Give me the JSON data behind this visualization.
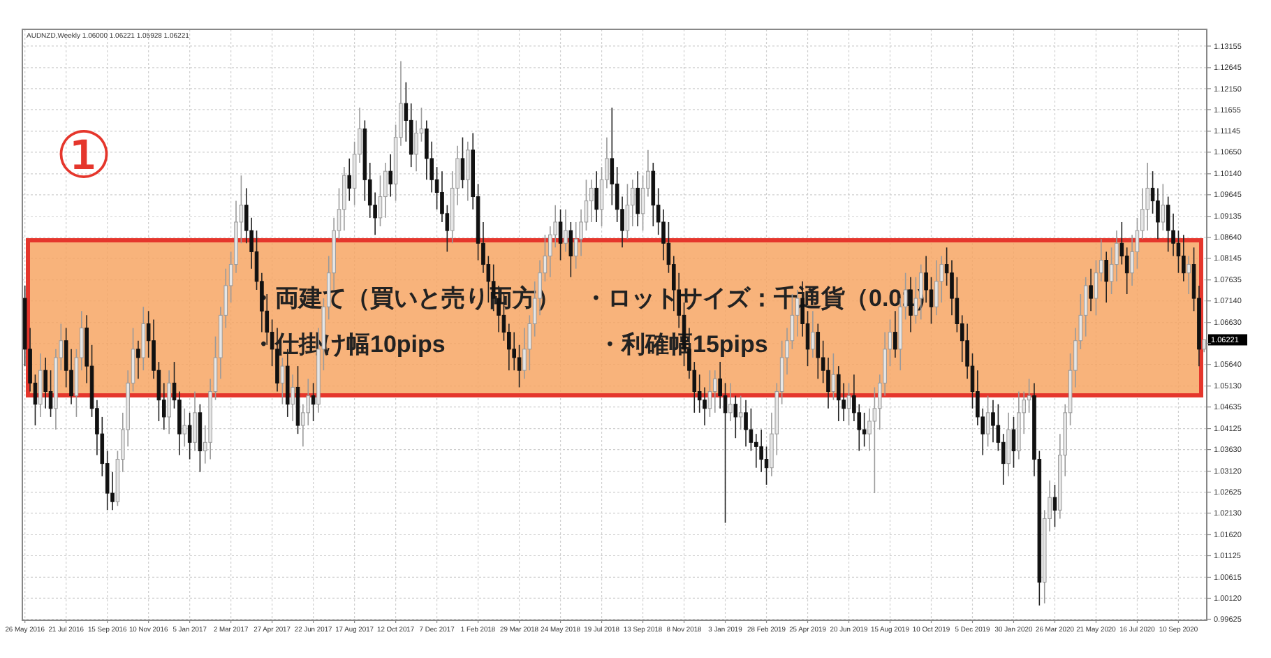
{
  "chart_data": {
    "type": "candlestick",
    "title": "AUDNZD,Weekly  1.06000 1.06221 1.05928 1.06221",
    "annotations": [
      "①",
      "・両建て（買いと売り両方）",
      "・ロットサイズ：千通貨（0.01）",
      "・仕掛け幅10pips",
      "・利確幅15pips",
      "1.06221"
    ],
    "grid": true,
    "ylim": [
      0.996,
      1.1355
    ],
    "yticks": [
      {
        "value": 1.13155,
        "label": "1.13155"
      },
      {
        "value": 1.12645,
        "label": "1.12645"
      },
      {
        "value": 1.1215,
        "label": "1.12150"
      },
      {
        "value": 1.11655,
        "label": "1.11655"
      },
      {
        "value": 1.11145,
        "label": "1.11145"
      },
      {
        "value": 1.1065,
        "label": "1.10650"
      },
      {
        "value": 1.1014,
        "label": "1.10140"
      },
      {
        "value": 1.09645,
        "label": "1.09645"
      },
      {
        "value": 1.09135,
        "label": "1.09135"
      },
      {
        "value": 1.0864,
        "label": "1.08640"
      },
      {
        "value": 1.08145,
        "label": "1.08145"
      },
      {
        "value": 1.07635,
        "label": "1.07635"
      },
      {
        "value": 1.0714,
        "label": "1.07140"
      },
      {
        "value": 1.0663,
        "label": "1.06630"
      },
      {
        "value": 1.06135,
        "label": null
      },
      {
        "value": 1.0564,
        "label": "1.05640"
      },
      {
        "value": 1.0513,
        "label": "1.05130"
      },
      {
        "value": 1.04635,
        "label": "1.04635"
      },
      {
        "value": 1.04125,
        "label": "1.04125"
      },
      {
        "value": 1.0363,
        "label": "1.03630"
      },
      {
        "value": 1.0312,
        "label": "1.03120"
      },
      {
        "value": 1.02625,
        "label": "1.02625"
      },
      {
        "value": 1.0213,
        "label": "1.02130"
      },
      {
        "value": 1.0162,
        "label": "1.01620"
      },
      {
        "value": 1.01125,
        "label": "1.01125"
      },
      {
        "value": 1.00615,
        "label": "1.00615"
      },
      {
        "value": 1.0012,
        "label": "1.00120"
      },
      {
        "value": 0.99625,
        "label": "0.99625"
      }
    ],
    "categories": [
      "26 May 2016",
      null,
      null,
      null,
      null,
      null,
      null,
      null,
      "21 Jul 2016",
      null,
      null,
      null,
      null,
      null,
      null,
      null,
      "15 Sep 2016",
      null,
      null,
      null,
      null,
      null,
      null,
      null,
      "10 Nov 2016",
      null,
      null,
      null,
      null,
      null,
      null,
      null,
      "5 Jan 2017",
      null,
      null,
      null,
      null,
      null,
      null,
      null,
      "2 Mar 2017",
      null,
      null,
      null,
      null,
      null,
      null,
      null,
      "27 Apr 2017",
      null,
      null,
      null,
      null,
      null,
      null,
      null,
      "22 Jun 2017",
      null,
      null,
      null,
      null,
      null,
      null,
      null,
      "17 Aug 2017",
      null,
      null,
      null,
      null,
      null,
      null,
      null,
      "12 Oct 2017",
      null,
      null,
      null,
      null,
      null,
      null,
      null,
      "7 Dec 2017",
      null,
      null,
      null,
      null,
      null,
      null,
      null,
      "1 Feb 2018",
      null,
      null,
      null,
      null,
      null,
      null,
      null,
      "29 Mar 2018",
      null,
      null,
      null,
      null,
      null,
      null,
      null,
      "24 May 2018",
      null,
      null,
      null,
      null,
      null,
      null,
      null,
      "19 Jul 2018",
      null,
      null,
      null,
      null,
      null,
      null,
      null,
      "13 Sep 2018",
      null,
      null,
      null,
      null,
      null,
      null,
      null,
      "8 Nov 2018",
      null,
      null,
      null,
      null,
      null,
      null,
      null,
      "3 Jan 2019",
      null,
      null,
      null,
      null,
      null,
      null,
      null,
      "28 Feb 2019",
      null,
      null,
      null,
      null,
      null,
      null,
      null,
      "25 Apr 2019",
      null,
      null,
      null,
      null,
      null,
      null,
      null,
      "20 Jun 2019",
      null,
      null,
      null,
      null,
      null,
      null,
      null,
      "15 Aug 2019",
      null,
      null,
      null,
      null,
      null,
      null,
      null,
      "10 Oct 2019",
      null,
      null,
      null,
      null,
      null,
      null,
      null,
      "5 Dec 2019",
      null,
      null,
      null,
      null,
      null,
      null,
      null,
      "30 Jan 2020",
      null,
      null,
      null,
      null,
      null,
      null,
      null,
      "26 Mar 2020",
      null,
      null,
      null,
      null,
      null,
      null,
      null,
      "21 May 2020",
      null,
      null,
      null,
      null,
      null,
      null,
      null,
      "16 Jul 2020",
      null,
      null,
      null,
      null,
      null,
      null,
      null,
      "10 Sep 2020",
      null,
      null,
      null,
      null,
      null
    ],
    "ohlc": [
      [
        1.072,
        1.075,
        1.056,
        1.06
      ],
      [
        1.06,
        1.065,
        1.05,
        1.052
      ],
      [
        1.052,
        1.054,
        1.042,
        1.047
      ],
      [
        1.047,
        1.059,
        1.044,
        1.055
      ],
      [
        1.055,
        1.058,
        1.046,
        1.05
      ],
      [
        1.05,
        1.055,
        1.044,
        1.046
      ],
      [
        1.046,
        1.06,
        1.041,
        1.058
      ],
      [
        1.058,
        1.066,
        1.055,
        1.062
      ],
      [
        1.062,
        1.065,
        1.051,
        1.055
      ],
      [
        1.055,
        1.06,
        1.047,
        1.049
      ],
      [
        1.049,
        1.06,
        1.044,
        1.058
      ],
      [
        1.058,
        1.069,
        1.055,
        1.065
      ],
      [
        1.065,
        1.068,
        1.052,
        1.056
      ],
      [
        1.056,
        1.061,
        1.044,
        1.046
      ],
      [
        1.046,
        1.048,
        1.035,
        1.04
      ],
      [
        1.04,
        1.044,
        1.03,
        1.033
      ],
      [
        1.033,
        1.036,
        1.022,
        1.026
      ],
      [
        1.026,
        1.031,
        1.022,
        1.024
      ],
      [
        1.024,
        1.036,
        1.023,
        1.034
      ],
      [
        1.034,
        1.045,
        1.031,
        1.041
      ],
      [
        1.041,
        1.055,
        1.037,
        1.052
      ],
      [
        1.052,
        1.065,
        1.05,
        1.06
      ],
      [
        1.06,
        1.062,
        1.053,
        1.058
      ],
      [
        1.058,
        1.07,
        1.055,
        1.066
      ],
      [
        1.066,
        1.069,
        1.058,
        1.062
      ],
      [
        1.062,
        1.067,
        1.053,
        1.055
      ],
      [
        1.055,
        1.057,
        1.043,
        1.048
      ],
      [
        1.048,
        1.052,
        1.041,
        1.044
      ],
      [
        1.044,
        1.055,
        1.04,
        1.052
      ],
      [
        1.052,
        1.057,
        1.046,
        1.048
      ],
      [
        1.048,
        1.05,
        1.035,
        1.04
      ],
      [
        1.04,
        1.046,
        1.037,
        1.042
      ],
      [
        1.042,
        1.045,
        1.034,
        1.038
      ],
      [
        1.038,
        1.05,
        1.036,
        1.045
      ],
      [
        1.045,
        1.047,
        1.031,
        1.036
      ],
      [
        1.036,
        1.042,
        1.033,
        1.038
      ],
      [
        1.038,
        1.053,
        1.034,
        1.05
      ],
      [
        1.05,
        1.063,
        1.048,
        1.058
      ],
      [
        1.058,
        1.07,
        1.053,
        1.068
      ],
      [
        1.068,
        1.079,
        1.065,
        1.075
      ],
      [
        1.075,
        1.083,
        1.071,
        1.08
      ],
      [
        1.08,
        1.095,
        1.078,
        1.09
      ],
      [
        1.09,
        1.101,
        1.085,
        1.094
      ],
      [
        1.094,
        1.098,
        1.085,
        1.088
      ],
      [
        1.088,
        1.091,
        1.079,
        1.083
      ],
      [
        1.083,
        1.088,
        1.074,
        1.076
      ],
      [
        1.076,
        1.078,
        1.064,
        1.069
      ],
      [
        1.069,
        1.073,
        1.061,
        1.064
      ],
      [
        1.064,
        1.067,
        1.056,
        1.06
      ],
      [
        1.06,
        1.065,
        1.05,
        1.052
      ],
      [
        1.052,
        1.058,
        1.047,
        1.056
      ],
      [
        1.056,
        1.06,
        1.044,
        1.047
      ],
      [
        1.047,
        1.054,
        1.043,
        1.051
      ],
      [
        1.051,
        1.056,
        1.04,
        1.042
      ],
      [
        1.042,
        1.047,
        1.037,
        1.045
      ],
      [
        1.045,
        1.053,
        1.042,
        1.049
      ],
      [
        1.049,
        1.052,
        1.043,
        1.047
      ],
      [
        1.047,
        1.065,
        1.045,
        1.06
      ],
      [
        1.06,
        1.072,
        1.055,
        1.07
      ],
      [
        1.07,
        1.082,
        1.067,
        1.078
      ],
      [
        1.078,
        1.091,
        1.074,
        1.088
      ],
      [
        1.088,
        1.098,
        1.086,
        1.093
      ],
      [
        1.093,
        1.103,
        1.088,
        1.101
      ],
      [
        1.101,
        1.105,
        1.095,
        1.098
      ],
      [
        1.098,
        1.109,
        1.094,
        1.106
      ],
      [
        1.106,
        1.117,
        1.104,
        1.112
      ],
      [
        1.112,
        1.114,
        1.095,
        1.1
      ],
      [
        1.1,
        1.104,
        1.091,
        1.094
      ],
      [
        1.094,
        1.097,
        1.087,
        1.091
      ],
      [
        1.091,
        1.101,
        1.089,
        1.096
      ],
      [
        1.096,
        1.104,
        1.091,
        1.102
      ],
      [
        1.102,
        1.106,
        1.096,
        1.099
      ],
      [
        1.099,
        1.113,
        1.095,
        1.11
      ],
      [
        1.11,
        1.128,
        1.108,
        1.118
      ],
      [
        1.118,
        1.123,
        1.109,
        1.114
      ],
      [
        1.114,
        1.118,
        1.103,
        1.106
      ],
      [
        1.106,
        1.114,
        1.102,
        1.111
      ],
      [
        1.111,
        1.117,
        1.109,
        1.112
      ],
      [
        1.112,
        1.114,
        1.1,
        1.105
      ],
      [
        1.105,
        1.109,
        1.097,
        1.1
      ],
      [
        1.1,
        1.103,
        1.093,
        1.097
      ],
      [
        1.097,
        1.102,
        1.09,
        1.092
      ],
      [
        1.092,
        1.094,
        1.083,
        1.088
      ],
      [
        1.088,
        1.102,
        1.085,
        1.098
      ],
      [
        1.098,
        1.108,
        1.094,
        1.105
      ],
      [
        1.105,
        1.11,
        1.098,
        1.1
      ],
      [
        1.1,
        1.109,
        1.095,
        1.107
      ],
      [
        1.107,
        1.111,
        1.093,
        1.096
      ],
      [
        1.096,
        1.099,
        1.081,
        1.085
      ],
      [
        1.085,
        1.09,
        1.078,
        1.08
      ],
      [
        1.08,
        1.082,
        1.071,
        1.076
      ],
      [
        1.076,
        1.08,
        1.069,
        1.072
      ],
      [
        1.072,
        1.075,
        1.064,
        1.068
      ],
      [
        1.068,
        1.073,
        1.062,
        1.064
      ],
      [
        1.064,
        1.066,
        1.055,
        1.06
      ],
      [
        1.06,
        1.064,
        1.055,
        1.058
      ],
      [
        1.058,
        1.061,
        1.051,
        1.055
      ],
      [
        1.055,
        1.065,
        1.053,
        1.06
      ],
      [
        1.06,
        1.068,
        1.055,
        1.066
      ],
      [
        1.066,
        1.076,
        1.063,
        1.072
      ],
      [
        1.072,
        1.081,
        1.068,
        1.078
      ],
      [
        1.078,
        1.087,
        1.076,
        1.082
      ],
      [
        1.082,
        1.089,
        1.077,
        1.087
      ],
      [
        1.087,
        1.094,
        1.084,
        1.09
      ],
      [
        1.09,
        1.093,
        1.081,
        1.085
      ],
      [
        1.085,
        1.093,
        1.083,
        1.088
      ],
      [
        1.088,
        1.09,
        1.077,
        1.082
      ],
      [
        1.082,
        1.09,
        1.079,
        1.086
      ],
      [
        1.086,
        1.093,
        1.082,
        1.09
      ],
      [
        1.09,
        1.1,
        1.088,
        1.095
      ],
      [
        1.095,
        1.1,
        1.09,
        1.098
      ],
      [
        1.098,
        1.102,
        1.09,
        1.093
      ],
      [
        1.093,
        1.103,
        1.089,
        1.1
      ],
      [
        1.1,
        1.11,
        1.098,
        1.105
      ],
      [
        1.105,
        1.117,
        1.094,
        1.099
      ],
      [
        1.099,
        1.103,
        1.09,
        1.093
      ],
      [
        1.093,
        1.096,
        1.084,
        1.088
      ],
      [
        1.088,
        1.099,
        1.086,
        1.094
      ],
      [
        1.094,
        1.1,
        1.089,
        1.098
      ],
      [
        1.098,
        1.102,
        1.089,
        1.092
      ],
      [
        1.092,
        1.101,
        1.088,
        1.098
      ],
      [
        1.098,
        1.107,
        1.096,
        1.102
      ],
      [
        1.102,
        1.104,
        1.089,
        1.094
      ],
      [
        1.094,
        1.098,
        1.087,
        1.09
      ],
      [
        1.09,
        1.093,
        1.081,
        1.085
      ],
      [
        1.085,
        1.09,
        1.078,
        1.08
      ],
      [
        1.08,
        1.082,
        1.069,
        1.074
      ],
      [
        1.074,
        1.078,
        1.065,
        1.068
      ],
      [
        1.068,
        1.071,
        1.056,
        1.06
      ],
      [
        1.06,
        1.065,
        1.053,
        1.055
      ],
      [
        1.055,
        1.057,
        1.045,
        1.05
      ],
      [
        1.05,
        1.054,
        1.045,
        1.048
      ],
      [
        1.048,
        1.051,
        1.042,
        1.046
      ],
      [
        1.046,
        1.055,
        1.044,
        1.05
      ],
      [
        1.05,
        1.055,
        1.045,
        1.053
      ],
      [
        1.053,
        1.057,
        1.046,
        1.049
      ],
      [
        1.049,
        1.052,
        1.019,
        1.045
      ],
      [
        1.045,
        1.052,
        1.043,
        1.047
      ],
      [
        1.047,
        1.049,
        1.039,
        1.044
      ],
      [
        1.044,
        1.049,
        1.041,
        1.045
      ],
      [
        1.045,
        1.048,
        1.037,
        1.041
      ],
      [
        1.041,
        1.046,
        1.036,
        1.038
      ],
      [
        1.038,
        1.04,
        1.032,
        1.037
      ],
      [
        1.037,
        1.041,
        1.031,
        1.034
      ],
      [
        1.034,
        1.037,
        1.028,
        1.032
      ],
      [
        1.032,
        1.045,
        1.03,
        1.04
      ],
      [
        1.04,
        1.052,
        1.035,
        1.05
      ],
      [
        1.05,
        1.062,
        1.047,
        1.058
      ],
      [
        1.058,
        1.065,
        1.054,
        1.062
      ],
      [
        1.062,
        1.073,
        1.06,
        1.068
      ],
      [
        1.068,
        1.074,
        1.063,
        1.072
      ],
      [
        1.072,
        1.076,
        1.063,
        1.066
      ],
      [
        1.066,
        1.069,
        1.056,
        1.06
      ],
      [
        1.06,
        1.069,
        1.058,
        1.064
      ],
      [
        1.064,
        1.066,
        1.053,
        1.058
      ],
      [
        1.058,
        1.062,
        1.052,
        1.055
      ],
      [
        1.055,
        1.058,
        1.046,
        1.05
      ],
      [
        1.05,
        1.059,
        1.048,
        1.054
      ],
      [
        1.054,
        1.056,
        1.043,
        1.048
      ],
      [
        1.048,
        1.052,
        1.043,
        1.046
      ],
      [
        1.046,
        1.052,
        1.042,
        1.049
      ],
      [
        1.049,
        1.054,
        1.043,
        1.045
      ],
      [
        1.045,
        1.047,
        1.036,
        1.041
      ],
      [
        1.041,
        1.045,
        1.037,
        1.04
      ],
      [
        1.04,
        1.046,
        1.036,
        1.043
      ],
      [
        1.043,
        1.051,
        1.026,
        1.046
      ],
      [
        1.046,
        1.054,
        1.041,
        1.052
      ],
      [
        1.052,
        1.064,
        1.049,
        1.06
      ],
      [
        1.06,
        1.067,
        1.056,
        1.064
      ],
      [
        1.064,
        1.069,
        1.058,
        1.06
      ],
      [
        1.06,
        1.072,
        1.055,
        1.07
      ],
      [
        1.07,
        1.078,
        1.067,
        1.074
      ],
      [
        1.074,
        1.077,
        1.064,
        1.068
      ],
      [
        1.068,
        1.077,
        1.066,
        1.072
      ],
      [
        1.072,
        1.08,
        1.067,
        1.078
      ],
      [
        1.078,
        1.082,
        1.071,
        1.074
      ],
      [
        1.074,
        1.077,
        1.066,
        1.07
      ],
      [
        1.07,
        1.081,
        1.068,
        1.076
      ],
      [
        1.076,
        1.082,
        1.071,
        1.08
      ],
      [
        1.08,
        1.084,
        1.075,
        1.078
      ],
      [
        1.078,
        1.081,
        1.068,
        1.072
      ],
      [
        1.072,
        1.077,
        1.064,
        1.066
      ],
      [
        1.066,
        1.068,
        1.057,
        1.062
      ],
      [
        1.062,
        1.066,
        1.053,
        1.056
      ],
      [
        1.056,
        1.059,
        1.046,
        1.05
      ],
      [
        1.05,
        1.055,
        1.042,
        1.044
      ],
      [
        1.044,
        1.046,
        1.035,
        1.04
      ],
      [
        1.04,
        1.049,
        1.037,
        1.045
      ],
      [
        1.045,
        1.048,
        1.038,
        1.042
      ],
      [
        1.042,
        1.047,
        1.036,
        1.038
      ],
      [
        1.038,
        1.04,
        1.028,
        1.033
      ],
      [
        1.033,
        1.045,
        1.03,
        1.041
      ],
      [
        1.041,
        1.044,
        1.032,
        1.036
      ],
      [
        1.036,
        1.05,
        1.034,
        1.045
      ],
      [
        1.045,
        1.05,
        1.04,
        1.048
      ],
      [
        1.048,
        1.053,
        1.045,
        1.049
      ],
      [
        1.049,
        1.052,
        1.03,
        1.034
      ],
      [
        1.034,
        1.036,
        0.9995,
        1.005
      ],
      [
        1.005,
        1.022,
        1.0,
        1.02
      ],
      [
        1.02,
        1.029,
        1.017,
        1.025
      ],
      [
        1.025,
        1.028,
        1.018,
        1.022
      ],
      [
        1.022,
        1.04,
        1.02,
        1.035
      ],
      [
        1.035,
        1.047,
        1.03,
        1.045
      ],
      [
        1.045,
        1.059,
        1.042,
        1.055
      ],
      [
        1.055,
        1.065,
        1.051,
        1.062
      ],
      [
        1.062,
        1.073,
        1.06,
        1.068
      ],
      [
        1.068,
        1.077,
        1.063,
        1.075
      ],
      [
        1.075,
        1.079,
        1.069,
        1.072
      ],
      [
        1.072,
        1.081,
        1.068,
        1.078
      ],
      [
        1.078,
        1.086,
        1.076,
        1.081
      ],
      [
        1.081,
        1.083,
        1.071,
        1.076
      ],
      [
        1.076,
        1.084,
        1.073,
        1.08
      ],
      [
        1.08,
        1.088,
        1.076,
        1.085
      ],
      [
        1.085,
        1.09,
        1.08,
        1.082
      ],
      [
        1.082,
        1.084,
        1.073,
        1.078
      ],
      [
        1.078,
        1.087,
        1.075,
        1.083
      ],
      [
        1.083,
        1.091,
        1.079,
        1.088
      ],
      [
        1.088,
        1.098,
        1.086,
        1.093
      ],
      [
        1.093,
        1.104,
        1.088,
        1.098
      ],
      [
        1.098,
        1.102,
        1.092,
        1.095
      ],
      [
        1.095,
        1.098,
        1.086,
        1.09
      ],
      [
        1.09,
        1.099,
        1.088,
        1.094
      ],
      [
        1.094,
        1.096,
        1.083,
        1.088
      ],
      [
        1.088,
        1.092,
        1.082,
        1.085
      ],
      [
        1.085,
        1.088,
        1.078,
        1.082
      ],
      [
        1.082,
        1.087,
        1.076,
        1.078
      ],
      [
        1.078,
        1.082,
        1.073,
        1.08
      ],
      [
        1.08,
        1.084,
        1.069,
        1.072
      ],
      [
        1.072,
        1.075,
        1.056,
        1.06
      ],
      [
        1.06,
        1.06221,
        1.05928,
        1.06221
      ]
    ]
  }
}
